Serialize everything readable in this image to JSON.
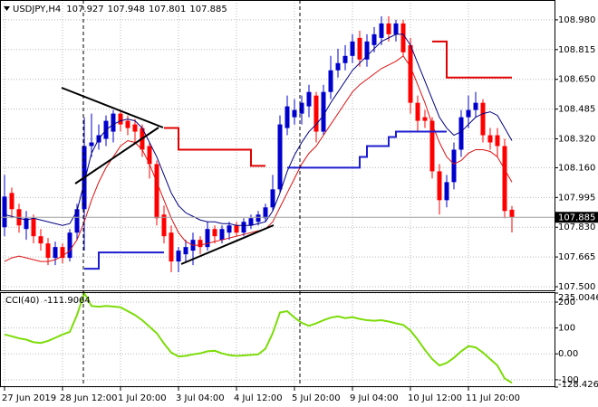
{
  "chart_data": [
    {
      "type": "candlestick",
      "title": "USDJPY,H4",
      "categories": [
        "27 Jun 2019",
        null,
        null,
        null,
        null,
        null,
        null,
        null,
        "28 Jun 12:00",
        null,
        null,
        null,
        null,
        null,
        null,
        null,
        "1 Jul 20:00",
        null,
        null,
        null,
        null,
        null,
        null,
        null,
        "3 Jul 04:00",
        null,
        null,
        null,
        null,
        null,
        null,
        null,
        "4 Jul 12:00",
        null,
        null,
        null,
        null,
        null,
        null,
        null,
        "5 Jul 20:00",
        null,
        null,
        null,
        null,
        null,
        null,
        null,
        "9 Jul 04:00",
        null,
        null,
        null,
        null,
        null,
        null,
        null,
        "10 Jul 12:00",
        null,
        null,
        null,
        null,
        null,
        null,
        null,
        "11 Jul 20:00",
        null,
        null,
        null,
        null,
        null,
        null
      ],
      "open": [
        107.83,
        108.02,
        107.93,
        107.82,
        107.88,
        107.78,
        107.74,
        107.66,
        107.72,
        107.66,
        107.8,
        107.93,
        108.28,
        108.3,
        108.32,
        108.36,
        108.46,
        108.42,
        108.4,
        108.38,
        108.28,
        108.18,
        107.9,
        107.8,
        107.64,
        107.68,
        107.7,
        107.76,
        107.72,
        107.82,
        107.76,
        107.8,
        107.84,
        107.8,
        107.84,
        107.86,
        107.88,
        107.94,
        108.04,
        108.38,
        108.44,
        108.46,
        108.5,
        108.56,
        108.36,
        108.58,
        108.7,
        108.74,
        108.78,
        108.88,
        108.76,
        108.84,
        108.88,
        108.96,
        108.9,
        108.96,
        108.84,
        108.52,
        108.44,
        108.42,
        108.14,
        107.98,
        108.08,
        108.26,
        108.44,
        108.48,
        108.52,
        108.34,
        108.34,
        108.28,
        107.927
      ],
      "high": [
        108.12,
        108.05,
        107.96,
        107.92,
        107.9,
        107.82,
        107.77,
        107.75,
        107.74,
        107.82,
        107.96,
        108.44,
        108.46,
        108.4,
        108.45,
        108.48,
        108.48,
        108.45,
        108.43,
        108.4,
        108.3,
        108.2,
        107.95,
        107.84,
        107.72,
        107.76,
        107.8,
        107.78,
        107.86,
        107.84,
        107.84,
        107.86,
        107.86,
        107.88,
        107.9,
        107.92,
        107.96,
        108.12,
        108.45,
        108.56,
        108.54,
        108.56,
        108.62,
        108.58,
        108.62,
        108.78,
        108.82,
        108.84,
        108.9,
        108.92,
        108.9,
        108.94,
        109.0,
        109.0,
        108.98,
        108.98,
        108.88,
        108.56,
        108.48,
        108.44,
        108.18,
        108.12,
        108.3,
        108.48,
        108.56,
        108.58,
        108.54,
        108.38,
        108.38,
        108.32,
        107.948
      ],
      "low": [
        107.78,
        107.88,
        107.8,
        107.76,
        107.74,
        107.7,
        107.62,
        107.62,
        107.63,
        107.64,
        107.76,
        107.7,
        108.22,
        108.26,
        108.28,
        108.3,
        108.36,
        108.34,
        108.3,
        108.22,
        108.1,
        107.84,
        107.74,
        107.58,
        107.58,
        107.64,
        107.62,
        107.68,
        107.7,
        107.74,
        107.74,
        107.76,
        107.78,
        107.78,
        107.82,
        107.84,
        107.86,
        107.92,
        108.02,
        108.34,
        108.4,
        108.4,
        108.44,
        108.3,
        108.34,
        108.54,
        108.66,
        108.7,
        108.74,
        108.72,
        108.72,
        108.8,
        108.84,
        108.86,
        108.86,
        108.78,
        108.46,
        108.36,
        108.38,
        108.1,
        107.9,
        107.94,
        108.04,
        108.22,
        108.38,
        108.44,
        108.3,
        108.26,
        108.22,
        107.88,
        107.801
      ],
      "close": [
        108.0,
        107.93,
        107.84,
        107.88,
        107.78,
        107.74,
        107.66,
        107.72,
        107.66,
        107.8,
        107.93,
        108.28,
        108.3,
        108.34,
        108.42,
        108.46,
        108.4,
        108.38,
        108.36,
        108.26,
        108.18,
        107.88,
        107.78,
        107.64,
        107.7,
        107.72,
        107.76,
        107.72,
        107.82,
        107.78,
        107.82,
        107.84,
        107.8,
        107.86,
        107.88,
        107.9,
        107.94,
        108.04,
        108.4,
        108.5,
        108.48,
        108.52,
        108.58,
        108.36,
        108.58,
        108.7,
        108.74,
        108.78,
        108.86,
        108.76,
        108.86,
        108.9,
        108.96,
        108.9,
        108.96,
        108.8,
        108.52,
        108.42,
        108.42,
        108.14,
        107.98,
        108.08,
        108.26,
        108.44,
        108.48,
        108.52,
        108.34,
        108.3,
        108.28,
        107.92,
        107.885
      ],
      "up_color": "#0000cd",
      "down_color": "#ff0000",
      "lines": [
        {
          "color": "#000080",
          "step": false,
          "values": [
            107.9,
            107.89,
            107.88,
            107.87,
            107.88,
            107.87,
            107.86,
            107.85,
            107.84,
            107.85,
            107.92,
            108.08,
            108.24,
            108.32,
            108.37,
            108.4,
            108.42,
            108.43,
            108.42,
            108.38,
            108.3,
            108.22,
            108.12,
            108.02,
            107.95,
            107.91,
            107.89,
            107.87,
            107.86,
            107.86,
            107.85,
            107.85,
            107.84,
            107.84,
            107.84,
            107.85,
            107.86,
            107.92,
            108.02,
            108.14,
            108.23,
            108.3,
            108.36,
            108.4,
            108.45,
            108.52,
            108.58,
            108.64,
            108.7,
            108.74,
            108.78,
            108.82,
            108.86,
            108.88,
            108.9,
            108.9,
            108.84,
            108.74,
            108.64,
            108.54,
            108.44,
            108.38,
            108.34,
            108.36,
            108.4,
            108.44,
            108.46,
            108.47,
            108.45,
            108.38,
            108.31
          ]
        },
        {
          "color": "#dd1111",
          "step": false,
          "values": [
            107.64,
            107.66,
            107.67,
            107.66,
            107.65,
            107.64,
            107.64,
            107.65,
            107.67,
            107.7,
            107.76,
            107.86,
            107.98,
            108.08,
            108.16,
            108.22,
            108.28,
            108.31,
            108.3,
            108.26,
            108.18,
            108.08,
            107.98,
            107.88,
            107.8,
            107.75,
            107.73,
            107.73,
            107.74,
            107.75,
            107.76,
            107.77,
            107.78,
            107.79,
            107.8,
            107.81,
            107.82,
            107.86,
            107.94,
            108.02,
            108.1,
            108.18,
            108.24,
            108.28,
            108.34,
            108.4,
            108.46,
            108.52,
            108.58,
            108.62,
            108.65,
            108.68,
            108.71,
            108.73,
            108.75,
            108.78,
            108.72,
            108.62,
            108.52,
            108.4,
            108.3,
            108.22,
            108.18,
            108.2,
            108.24,
            108.26,
            108.26,
            108.25,
            108.22,
            108.15,
            108.08
          ]
        },
        {
          "color": "#e00000",
          "step": true,
          "values": [
            null,
            null,
            null,
            null,
            null,
            null,
            null,
            null,
            null,
            null,
            null,
            null,
            null,
            null,
            null,
            null,
            null,
            null,
            null,
            null,
            null,
            null,
            108.38,
            108.38,
            108.26,
            108.26,
            108.26,
            108.26,
            108.26,
            108.26,
            108.26,
            108.26,
            108.26,
            108.26,
            108.17,
            108.17,
            108.17,
            null,
            null,
            null,
            null,
            null,
            null,
            null,
            null,
            null,
            null,
            null,
            null,
            null,
            null,
            null,
            null,
            null,
            null,
            null,
            null,
            null,
            null,
            108.86,
            108.86,
            108.66,
            108.66,
            108.66,
            108.66,
            108.66,
            108.66,
            108.66,
            108.66,
            108.66,
            108.66
          ]
        },
        {
          "color": "#1c1cd0",
          "step": true,
          "values": [
            null,
            null,
            null,
            null,
            null,
            null,
            null,
            null,
            null,
            null,
            null,
            107.6,
            107.6,
            107.69,
            107.69,
            107.69,
            107.69,
            107.69,
            107.69,
            107.69,
            107.69,
            107.69,
            107.69,
            null,
            null,
            null,
            null,
            null,
            null,
            null,
            null,
            null,
            null,
            null,
            null,
            null,
            null,
            null,
            null,
            108.16,
            108.16,
            108.16,
            108.16,
            108.16,
            108.16,
            108.16,
            108.16,
            108.16,
            108.16,
            108.22,
            108.28,
            108.28,
            108.28,
            108.33,
            108.36,
            108.36,
            108.36,
            108.36,
            108.36,
            108.36,
            108.36,
            108.36,
            null,
            null,
            null,
            null,
            null,
            null,
            null,
            null,
            null
          ]
        }
      ],
      "ylim": [
        107.48,
        109.09
      ],
      "yticks": [
        {
          "value": 108.98,
          "label": "108.980"
        },
        108.815,
        {
          "value": 108.65,
          "label": "108.650"
        },
        108.485,
        {
          "value": 108.32,
          "label": "108.320"
        },
        {
          "value": 108.16,
          "label": "108.160"
        },
        107.995,
        {
          "value": 107.83,
          "label": "107.830"
        },
        107.665,
        {
          "value": 107.5,
          "label": "107.500"
        }
      ],
      "grid": true
    },
    {
      "type": "line",
      "title": "CCI(40)",
      "color": "#7cdc08",
      "values": [
        75,
        68,
        60,
        55,
        45,
        42,
        50,
        62,
        75,
        85,
        150,
        235,
        185,
        182,
        185,
        183,
        180,
        165,
        150,
        130,
        105,
        80,
        40,
        5,
        -10,
        -8,
        -2,
        2,
        10,
        12,
        2,
        -5,
        -8,
        -6,
        -4,
        -2,
        20,
        80,
        160,
        165,
        140,
        120,
        108,
        118,
        130,
        140,
        145,
        138,
        142,
        135,
        130,
        128,
        130,
        125,
        118,
        112,
        90,
        55,
        15,
        -20,
        -45,
        -35,
        -15,
        10,
        30,
        25,
        5,
        -20,
        -45,
        -95,
        -111.9064
      ],
      "ylim": [
        -128.426,
        235.0046
      ],
      "yticks": [
        235.0046,
        200,
        100,
        {
          "value": 0,
          "label": "0.00"
        },
        -100,
        -128.426
      ],
      "grid": true
    }
  ]
}
